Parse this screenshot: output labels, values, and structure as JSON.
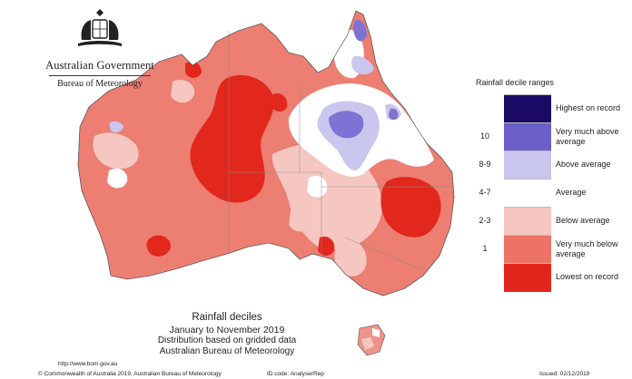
{
  "header": {
    "government": "Australian Government",
    "bureau": "Bureau of Meteorology"
  },
  "legend": {
    "title": "Rainfall decile ranges",
    "items": [
      {
        "decile": "",
        "label": "Highest on record",
        "color": "#1a0a66"
      },
      {
        "decile": "10",
        "label": "Very much above average",
        "color": "#6b5fc9"
      },
      {
        "decile": "8-9",
        "label": "Above average",
        "color": "#c8c6ee"
      },
      {
        "decile": "4-7",
        "label": "Average",
        "color": "#ffffff"
      },
      {
        "decile": "2-3",
        "label": "Below average",
        "color": "#f7c6c0"
      },
      {
        "decile": "1",
        "label": "Very much below average",
        "color": "#ec7366"
      },
      {
        "decile": "",
        "label": "Lowest on record",
        "color": "#e2261c"
      }
    ]
  },
  "caption": {
    "title": "Rainfall deciles",
    "period": "January to November 2019",
    "line1": "Distribution based on gridded data",
    "line2": "Australian Bureau of Meteorology"
  },
  "footer": {
    "url": "http://www.bom.gov.au",
    "copyright": "© Commonwealth of Australia 2019, Australian Bureau of Meteorology",
    "id_code": "ID code: AnalyserRep",
    "issued": "Issued: 02/12/2019"
  }
}
